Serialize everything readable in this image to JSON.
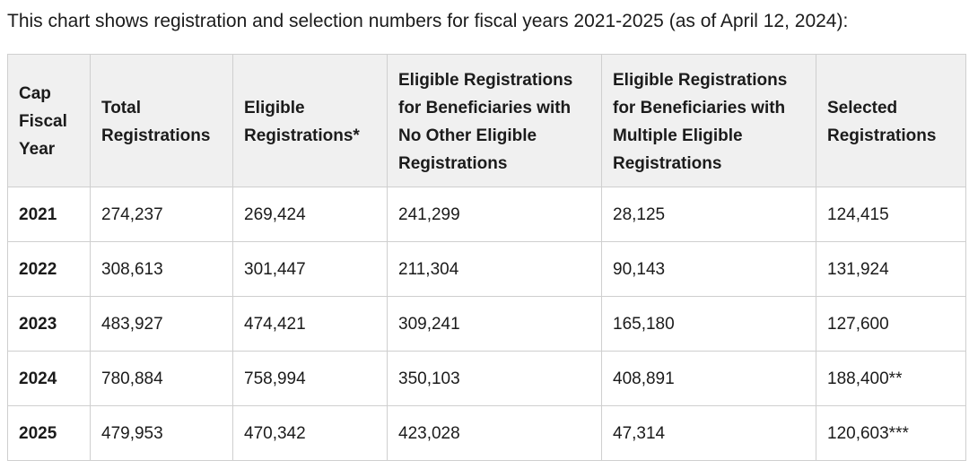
{
  "intro_text": "This chart shows registration and selection numbers for fiscal years 2021-2025 (as of April 12, 2024):",
  "table": {
    "headers": [
      "Cap Fiscal Year",
      "Total Registrations",
      "Eligible Registrations*",
      "Eligible Registrations for Beneficiaries with No Other Eligible Registrations",
      "Eligible Registrations for Beneficiaries with Multiple Eligible Registrations",
      "Selected Registrations"
    ],
    "rows": [
      [
        "2021",
        "274,237",
        "269,424",
        "241,299",
        "28,125",
        "124,415"
      ],
      [
        "2022",
        "308,613",
        "301,447",
        "211,304",
        "90,143",
        "131,924"
      ],
      [
        "2023",
        "483,927",
        "474,421",
        "309,241",
        "165,180",
        "127,600"
      ],
      [
        "2024",
        "780,884",
        "758,994",
        "350,103",
        "408,891",
        "188,400**"
      ],
      [
        "2025",
        "479,953",
        "470,342",
        "423,028",
        "47,314",
        "120,603***"
      ]
    ]
  }
}
